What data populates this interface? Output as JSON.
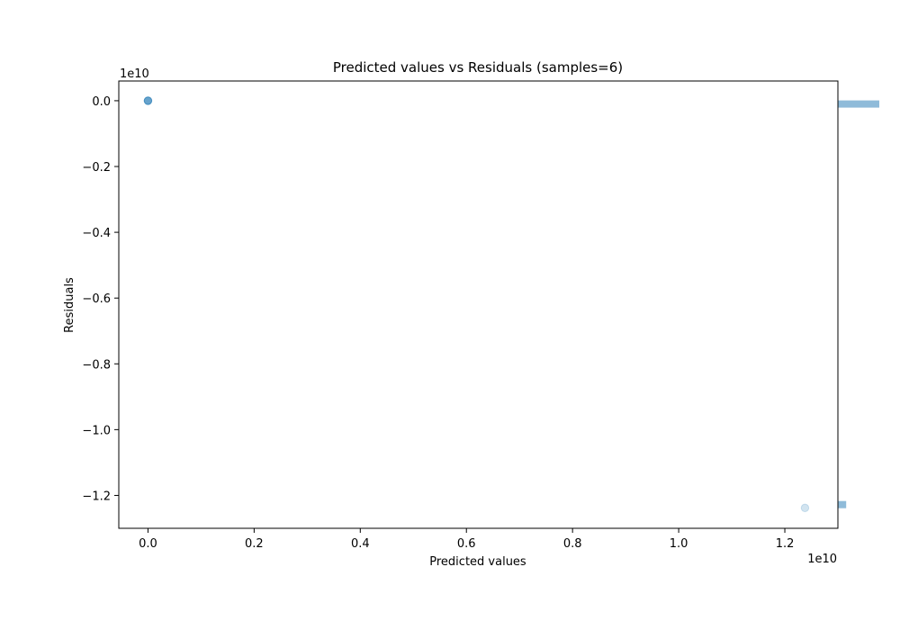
{
  "chart_data": {
    "type": "scatter",
    "title": "Predicted values vs Residuals (samples=6)",
    "xlabel": "Predicted values",
    "ylabel": "Residuals",
    "x_exponent_label": "1e10",
    "y_exponent_label": "1e10",
    "xlim": [
      -0.055,
      1.3
    ],
    "ylim": [
      -1.3,
      0.06
    ],
    "x_scale_factor": 10000000000.0,
    "y_scale_factor": 10000000000.0,
    "x_ticks": [
      0.0,
      0.2,
      0.4,
      0.6,
      0.8,
      1.0,
      1.2
    ],
    "x_tick_labels": [
      "0.0",
      "0.2",
      "0.4",
      "0.6",
      "0.8",
      "1.0",
      "1.2"
    ],
    "y_ticks": [
      0.0,
      -0.2,
      -0.4,
      -0.6,
      -0.8,
      -1.0,
      -1.2
    ],
    "y_tick_labels": [
      "0.0",
      "−0.2",
      "−0.4",
      "−0.6",
      "−0.8",
      "−1.0",
      "−1.2"
    ],
    "grid": false,
    "points": [
      {
        "x": 0.0,
        "y": 0.0
      },
      {
        "x": 0.0,
        "y": 0.0
      },
      {
        "x": 0.0,
        "y": 0.0
      },
      {
        "x": 0.0,
        "y": 0.0
      },
      {
        "x": 0.0,
        "y": 0.0
      },
      {
        "x": 1.238,
        "y": -1.238
      }
    ],
    "marginal_histogram": {
      "orientation": "horizontal",
      "bins": [
        {
          "y_center": -0.01,
          "count": 5
        },
        {
          "y_center": -1.228,
          "count": 1
        }
      ]
    },
    "colors": {
      "point": "#1f77b4",
      "histogram": "#1f77b4"
    }
  }
}
